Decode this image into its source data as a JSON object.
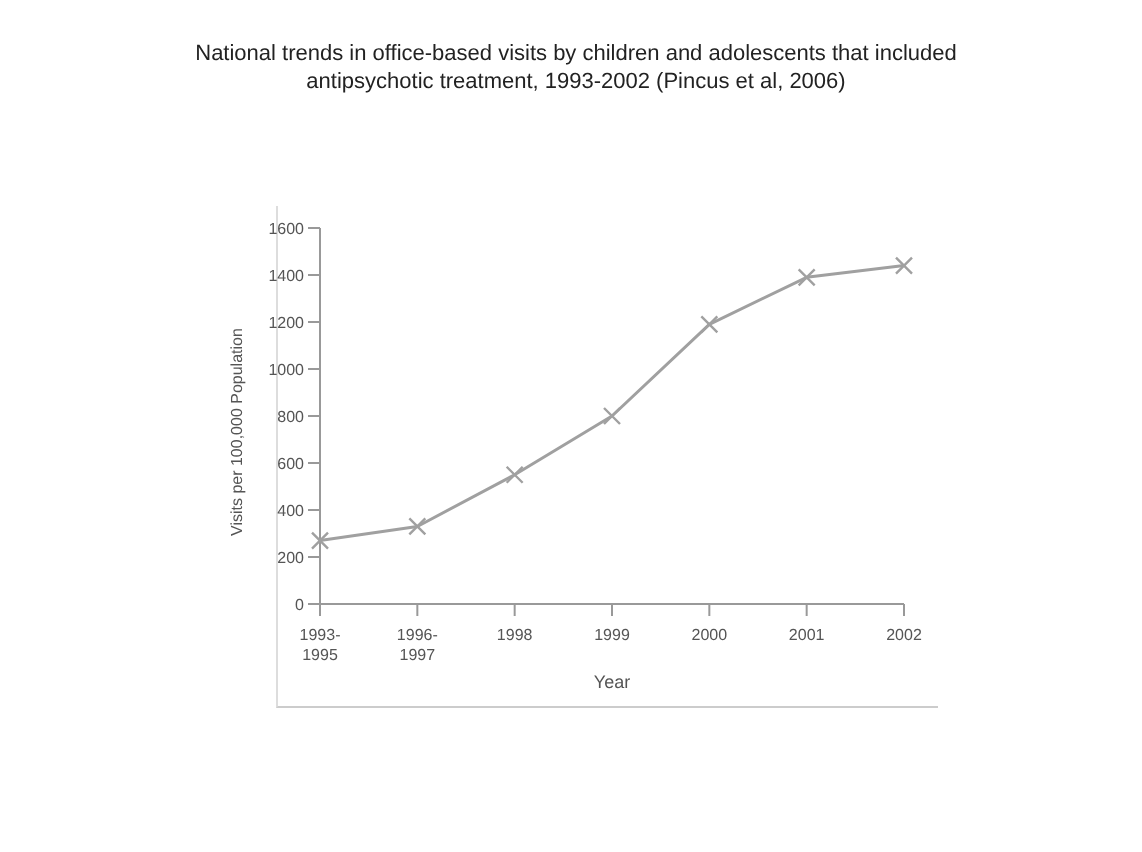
{
  "chart_data": {
    "type": "line",
    "title": "National trends in office-based visits by children and adolescents that included antipsychotic treatment, 1993-2002 (Pincus et al, 2006)",
    "xlabel": "Year",
    "ylabel": "Visits per 100,000 Population",
    "categories": [
      "1993-1995",
      "1996-1997",
      "1998",
      "1999",
      "2000",
      "2001",
      "2002"
    ],
    "series": [
      {
        "color": "#a0a0a0",
        "values": [
          270,
          330,
          550,
          800,
          1190,
          1390,
          1440
        ]
      }
    ],
    "ylim": [
      0,
      1600
    ],
    "yticks": [
      0,
      200,
      400,
      600,
      800,
      1000,
      1200,
      1400,
      1600
    ],
    "grid": false,
    "legend": false,
    "marker": "cross",
    "line_style": "solid"
  }
}
